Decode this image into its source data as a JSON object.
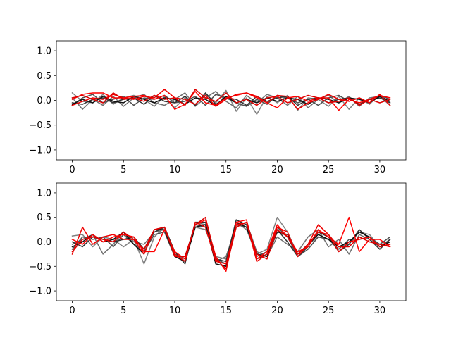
{
  "chart_data": [
    {
      "type": "line",
      "title": "",
      "xlabel": "",
      "ylabel": "",
      "xlim": [
        -1.55,
        32.55
      ],
      "ylim": [
        -1.2,
        1.2
      ],
      "xticks": [
        0,
        5,
        10,
        15,
        20,
        25,
        30
      ],
      "yticks": [
        -1.0,
        -0.5,
        0.0,
        0.5,
        1.0
      ],
      "xtick_labels": [
        "0",
        "5",
        "10",
        "15",
        "20",
        "25",
        "30"
      ],
      "ytick_labels": [
        "−1.0",
        "−0.5",
        "0.0",
        "0.5",
        "1.0"
      ],
      "grid": false,
      "x": [
        0,
        1,
        2,
        3,
        4,
        5,
        6,
        7,
        8,
        9,
        10,
        11,
        12,
        13,
        14,
        15,
        16,
        17,
        18,
        19,
        20,
        21,
        22,
        23,
        24,
        25,
        26,
        27,
        28,
        29,
        30,
        31
      ],
      "series": [
        {
          "color": "#808080",
          "values": [
            0.15,
            -0.02,
            -0.05,
            0.12,
            -0.08,
            0.05,
            0.1,
            0.02,
            -0.12,
            0.08,
            -0.15,
            0.05,
            -0.08,
            0.12,
            -0.05,
            0.2,
            -0.22,
            0.05,
            -0.28,
            0.08,
            -0.05,
            0.1,
            -0.2,
            0.05,
            0.02,
            -0.12,
            0.08,
            -0.18,
            0.05,
            -0.08,
            0.12,
            -0.05
          ]
        },
        {
          "color": "#707070",
          "values": [
            0.05,
            -0.18,
            0.02,
            -0.1,
            0.08,
            -0.12,
            0.05,
            0.12,
            -0.05,
            -0.1,
            0.02,
            0.15,
            -0.12,
            0.05,
            0.18,
            -0.02,
            -0.15,
            0.1,
            -0.05,
            0.12,
            0.05,
            -0.1,
            0.08,
            -0.15,
            0.02,
            0.1,
            -0.05,
            0.08,
            -0.12,
            0.05,
            0.08,
            -0.1
          ]
        },
        {
          "color": "#505050",
          "values": [
            -0.1,
            0.05,
            0.12,
            -0.05,
            0.02,
            0.08,
            -0.1,
            0.05,
            0.02,
            0.1,
            -0.05,
            -0.02,
            0.08,
            -0.1,
            0.12,
            0.05,
            -0.05,
            -0.12,
            0.02,
            -0.08,
            0.1,
            0.05,
            -0.05,
            0.02,
            -0.1,
            0.05,
            0.1,
            -0.02,
            0.05,
            -0.05,
            0.1,
            0.02
          ]
        },
        {
          "color": "#303030",
          "values": [
            -0.05,
            -0.08,
            0.02,
            0.05,
            -0.05,
            0.02,
            0.05,
            -0.08,
            0.1,
            -0.02,
            -0.05,
            0.08,
            -0.1,
            0.15,
            -0.08,
            0.05,
            0.02,
            -0.1,
            0.08,
            -0.02,
            0.05,
            0.08,
            -0.1,
            0.02,
            0.05,
            -0.05,
            0.02,
            0.05,
            -0.08,
            0.02,
            0.05,
            -0.05
          ]
        },
        {
          "color": "#101010",
          "values": [
            -0.08,
            0.02,
            -0.05,
            0.08,
            -0.02,
            -0.05,
            0.08,
            0.02,
            -0.05,
            0.05,
            0.02,
            -0.08,
            0.05,
            0.02,
            -0.1,
            0.08,
            -0.05,
            0.02,
            -0.05,
            0.05,
            -0.02,
            0.05,
            0.02,
            -0.08,
            0.05,
            0.02,
            -0.05,
            0.05,
            0.02,
            -0.05,
            0.08,
            -0.02
          ]
        },
        {
          "color": "#ff0000",
          "values": [
            0.02,
            0.12,
            0.15,
            0.15,
            0.05,
            0.05,
            0.08,
            0.1,
            0.02,
            0.1,
            -0.18,
            -0.08,
            0.18,
            -0.05,
            -0.1,
            0.05,
            0.1,
            0.15,
            0.05,
            -0.05,
            -0.15,
            0.05,
            0.08,
            -0.02,
            0.05,
            0.05,
            -0.2,
            0.02,
            -0.05,
            0.02,
            0.1,
            0.05
          ]
        },
        {
          "color": "#ee0000",
          "values": [
            -0.1,
            -0.02,
            0.05,
            0.02,
            0.12,
            0.05,
            0.02,
            0.08,
            0.05,
            0.22,
            0.05,
            0.02,
            -0.08,
            0.1,
            -0.12,
            0.02,
            0.12,
            0.15,
            0.08,
            -0.05,
            0.1,
            0.08,
            -0.18,
            -0.05,
            0.02,
            0.12,
            0.02,
            -0.02,
            0.05,
            -0.05,
            0.12,
            -0.1
          ]
        },
        {
          "color": "#dd0000",
          "values": [
            0.05,
            0.1,
            0.02,
            -0.05,
            0.15,
            0.02,
            0.05,
            -0.02,
            0.1,
            0.02,
            0.05,
            -0.1,
            0.22,
            0.05,
            -0.02,
            0.15,
            -0.05,
            0.02,
            -0.1,
            0.05,
            0.08,
            -0.05,
            0.02,
            0.1,
            0.05,
            -0.05,
            -0.02,
            0.05,
            -0.1,
            0.02,
            -0.05,
            0.02
          ]
        }
      ]
    },
    {
      "type": "line",
      "title": "",
      "xlabel": "",
      "ylabel": "",
      "xlim": [
        -1.55,
        32.55
      ],
      "ylim": [
        -1.2,
        1.2
      ],
      "xticks": [
        0,
        5,
        10,
        15,
        20,
        25,
        30
      ],
      "yticks": [
        -1.0,
        -0.5,
        0.0,
        0.5,
        1.0
      ],
      "xtick_labels": [
        "0",
        "5",
        "10",
        "15",
        "20",
        "25",
        "30"
      ],
      "ytick_labels": [
        "−1.0",
        "−0.5",
        "0.0",
        "0.5",
        "1.0"
      ],
      "grid": false,
      "x": [
        0,
        1,
        2,
        3,
        4,
        5,
        6,
        7,
        8,
        9,
        10,
        11,
        12,
        13,
        14,
        15,
        16,
        17,
        18,
        19,
        20,
        21,
        22,
        23,
        24,
        25,
        26,
        27,
        28,
        29,
        30,
        31
      ],
      "series": [
        {
          "color": "#808080",
          "values": [
            0.12,
            0.15,
            -0.1,
            0.1,
            0.05,
            -0.1,
            0.05,
            -0.45,
            0.1,
            0.3,
            -0.2,
            -0.4,
            0.3,
            0.25,
            -0.3,
            -0.35,
            0.4,
            0.25,
            -0.25,
            -0.15,
            0.5,
            0.2,
            -0.25,
            -0.05,
            0.1,
            0.05,
            -0.1,
            -0.05,
            0.2,
            0.15,
            -0.1,
            0.05
          ]
        },
        {
          "color": "#707070",
          "values": [
            -0.05,
            0.05,
            0.15,
            -0.25,
            -0.05,
            0.2,
            0.0,
            -0.05,
            0.2,
            0.25,
            -0.25,
            -0.35,
            0.4,
            0.35,
            -0.4,
            -0.3,
            0.3,
            0.4,
            -0.2,
            -0.3,
            0.1,
            -0.05,
            -0.2,
            0.1,
            0.25,
            -0.1,
            0.05,
            -0.25,
            0.15,
            0.05,
            -0.1,
            0.05
          ]
        },
        {
          "color": "#505050",
          "values": [
            -0.15,
            0.1,
            0.05,
            0.1,
            -0.1,
            0.15,
            -0.05,
            -0.2,
            0.15,
            0.2,
            -0.3,
            -0.3,
            0.35,
            0.3,
            -0.35,
            -0.45,
            0.35,
            0.3,
            -0.3,
            -0.2,
            0.3,
            0.1,
            -0.3,
            -0.15,
            0.1,
            0.05,
            -0.15,
            0.05,
            0.05,
            0.1,
            -0.05,
            0.1
          ]
        },
        {
          "color": "#303030",
          "values": [
            0.0,
            -0.1,
            0.1,
            0.05,
            0.0,
            0.05,
            0.1,
            -0.15,
            0.2,
            0.3,
            -0.2,
            -0.45,
            0.4,
            0.4,
            -0.35,
            -0.4,
            0.45,
            0.35,
            -0.35,
            -0.25,
            0.25,
            0.0,
            -0.3,
            -0.1,
            0.2,
            0.1,
            -0.2,
            -0.05,
            0.25,
            0.05,
            -0.15,
            0.05
          ]
        },
        {
          "color": "#101010",
          "values": [
            -0.1,
            0.0,
            0.15,
            0.0,
            0.05,
            0.2,
            -0.05,
            -0.25,
            0.25,
            0.25,
            -0.3,
            -0.4,
            0.3,
            0.35,
            -0.45,
            -0.5,
            0.4,
            0.3,
            -0.25,
            -0.3,
            0.2,
            0.15,
            -0.25,
            -0.05,
            0.15,
            0.05,
            -0.1,
            0.0,
            0.2,
            0.1,
            -0.1,
            0.0
          ]
        },
        {
          "color": "#ff0000",
          "values": [
            0.05,
            -0.05,
            0.15,
            0.0,
            0.1,
            0.15,
            0.1,
            -0.2,
            -0.2,
            0.25,
            -0.2,
            -0.35,
            0.35,
            0.45,
            -0.3,
            -0.6,
            0.4,
            0.45,
            -0.35,
            -0.2,
            0.35,
            0.1,
            -0.2,
            -0.1,
            0.25,
            0.1,
            -0.05,
            0.5,
            -0.2,
            0.05,
            0.05,
            -0.1
          ]
        },
        {
          "color": "#ee0000",
          "values": [
            -0.25,
            0.3,
            -0.05,
            0.1,
            0.15,
            0.05,
            0.05,
            -0.25,
            0.25,
            0.3,
            -0.25,
            -0.4,
            0.4,
            0.3,
            -0.4,
            -0.45,
            0.35,
            0.4,
            -0.4,
            -0.25,
            0.3,
            0.2,
            -0.3,
            -0.05,
            0.35,
            0.15,
            -0.2,
            0.0,
            0.05,
            0.1,
            -0.1,
            -0.05
          ]
        },
        {
          "color": "#dd0000",
          "values": [
            -0.2,
            0.05,
            0.1,
            0.05,
            0.0,
            0.2,
            0.05,
            -0.15,
            0.25,
            0.3,
            -0.3,
            -0.3,
            0.35,
            0.5,
            -0.35,
            -0.55,
            0.3,
            0.4,
            -0.25,
            -0.35,
            0.25,
            0.1,
            -0.25,
            -0.05,
            0.2,
            0.15,
            -0.1,
            -0.1,
            0.1,
            0.0,
            -0.05,
            -0.1
          ]
        }
      ]
    }
  ]
}
